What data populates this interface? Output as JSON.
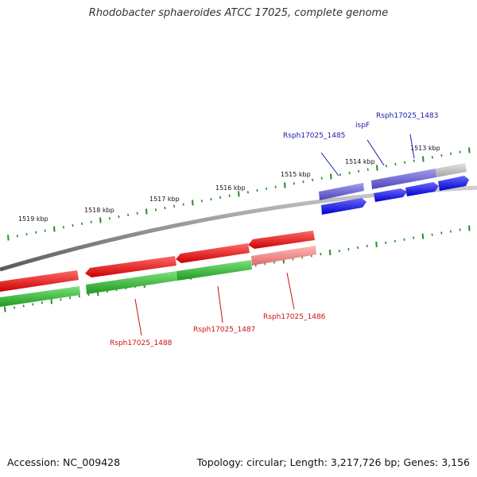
{
  "title": "Rhodobacter sphaeroides ATCC 17025, complete genome",
  "footer": {
    "accession": "Accession: NC_009428",
    "summary": "Topology: circular; Length: 3,217,726 bp; Genes: 3,156"
  },
  "colors": {
    "backbone": "#8c8c8c",
    "tick": "#2a8a2a",
    "fwd_gene": "#7a6fd6",
    "fwd_cds": "#1c1cf0",
    "rev_gene": "#33bb33",
    "rev_cds": "#ee1111",
    "pseudo": "#f08888",
    "other": "#bbbbbb",
    "label_fwd": "#1a1aa8",
    "label_rev": "#cc1111"
  },
  "scale": {
    "unit": "kbp",
    "labels": [
      "1513 kbp",
      "1514 kbp",
      "1515 kbp",
      "1516 kbp",
      "1517 kbp",
      "1518 kbp",
      "1519 kbp"
    ]
  },
  "genes": {
    "forward": [
      "Rsph17025_1483",
      "ispF",
      "Rsph17025_1485"
    ],
    "reverse": [
      "Rsph17025_1486",
      "Rsph17025_1487",
      "Rsph17025_1488"
    ]
  }
}
